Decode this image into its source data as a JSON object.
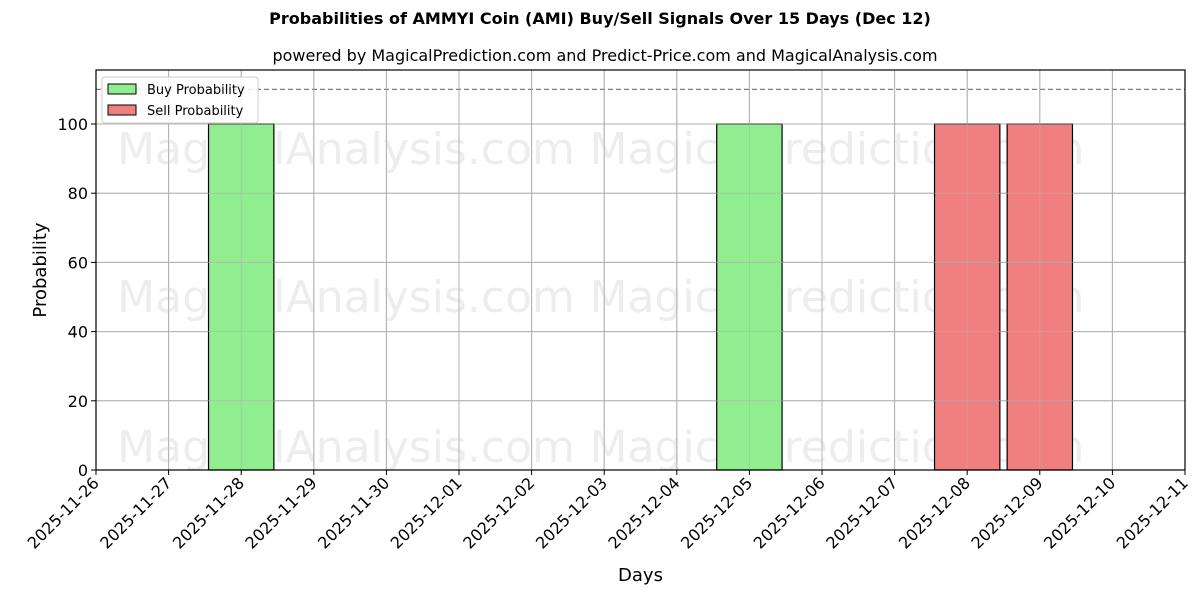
{
  "chart_data": {
    "type": "bar",
    "title": "Probabilities of AMMYI Coin (AMI) Buy/Sell Signals Over 15 Days (Dec 12)",
    "subtitle": "powered by MagicalPrediction.com and Predict-Price.com and MagicalAnalysis.com",
    "xlabel": "Days",
    "ylabel": "Probability",
    "ylim": [
      0,
      115.5
    ],
    "yticks": [
      0,
      20,
      40,
      60,
      80,
      100
    ],
    "xticks": [
      "2025-11-26",
      "2025-11-27",
      "2025-11-28",
      "2025-11-29",
      "2025-11-30",
      "2025-12-01",
      "2025-12-02",
      "2025-12-03",
      "2025-12-04",
      "2025-12-05",
      "2025-12-06",
      "2025-12-07",
      "2025-12-08",
      "2025-12-09",
      "2025-12-10",
      "2025-12-11"
    ],
    "grid": true,
    "legend_position": "upper left",
    "reference_line": {
      "y": 110,
      "style": "dashed",
      "color": "#808080"
    },
    "categories": [
      "2025-11-28",
      "2025-12-05",
      "2025-12-08",
      "2025-12-09"
    ],
    "series": [
      {
        "name": "Buy Probability",
        "color": "#90ee90",
        "points": [
          {
            "x": "2025-11-28",
            "y": 100
          },
          {
            "x": "2025-12-05",
            "y": 100
          }
        ]
      },
      {
        "name": "Sell Probability",
        "color": "#f08080",
        "points": [
          {
            "x": "2025-12-08",
            "y": 100
          },
          {
            "x": "2025-12-09",
            "y": 100
          }
        ]
      }
    ],
    "watermarks": [
      "MagicalAnalysis.com",
      "MagicalPrediction.com"
    ]
  }
}
